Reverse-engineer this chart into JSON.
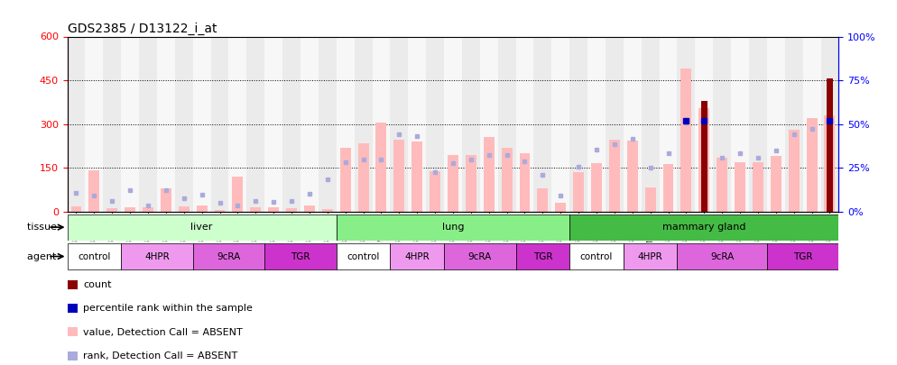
{
  "title": "GDS2385 / D13122_i_at",
  "samples": [
    "GSM89873",
    "GSM89875",
    "GSM89878",
    "GSM89881",
    "GSM89841",
    "GSM89843",
    "GSM89846",
    "GSM89870",
    "GSM89858",
    "GSM89861",
    "GSM89864",
    "GSM89867",
    "GSM89849",
    "GSM89852",
    "GSM89855",
    "GSM89876",
    "GSM89879",
    "GSM90168",
    "GSM89842",
    "GSM89844",
    "GSM89847",
    "GSM89871",
    "GSM89859",
    "GSM89862",
    "GSM89865",
    "GSM89868",
    "GSM89850",
    "GSM89853",
    "GSM89856",
    "GSM89874",
    "GSM89877",
    "GSM89880",
    "GSM90169",
    "GSM89845",
    "GSM89848",
    "GSM89872",
    "GSM89860",
    "GSM89863",
    "GSM89866",
    "GSM89869",
    "GSM89851",
    "GSM89854",
    "GSM89857"
  ],
  "value_absent": [
    18,
    142,
    12,
    15,
    15,
    80,
    18,
    22,
    5,
    120,
    14,
    14,
    12,
    22,
    8,
    220,
    235,
    305,
    248,
    240,
    140,
    195,
    195,
    255,
    220,
    200,
    80,
    30,
    135,
    165,
    248,
    245,
    82,
    162,
    490,
    355,
    185,
    170,
    168,
    192,
    280,
    320,
    330
  ],
  "rank_absent": [
    65,
    55,
    38,
    75,
    20,
    75,
    45,
    58,
    32,
    20,
    38,
    35,
    38,
    62,
    110,
    170,
    178,
    178,
    265,
    260,
    135,
    165,
    180,
    195,
    195,
    172,
    125,
    55,
    155,
    212,
    230,
    250,
    150,
    200,
    305,
    305,
    185,
    200,
    185,
    210,
    265,
    285,
    300
  ],
  "count": [
    0,
    0,
    0,
    0,
    0,
    0,
    0,
    0,
    0,
    0,
    0,
    0,
    0,
    0,
    0,
    0,
    0,
    0,
    0,
    0,
    0,
    0,
    0,
    0,
    0,
    0,
    0,
    0,
    0,
    0,
    0,
    0,
    0,
    0,
    0,
    380,
    0,
    0,
    0,
    0,
    0,
    0,
    455
  ],
  "percentile": [
    0,
    0,
    0,
    0,
    0,
    0,
    0,
    0,
    0,
    0,
    0,
    0,
    0,
    0,
    0,
    0,
    0,
    0,
    0,
    0,
    0,
    0,
    0,
    0,
    0,
    0,
    0,
    0,
    0,
    0,
    0,
    0,
    0,
    0,
    310,
    310,
    0,
    0,
    0,
    0,
    0,
    0,
    310
  ],
  "tissue_spans": [
    {
      "label": "liver",
      "start": 0,
      "end": 15,
      "color": "#ccffcc"
    },
    {
      "label": "lung",
      "start": 15,
      "end": 28,
      "color": "#88ee88"
    },
    {
      "label": "mammary gland",
      "start": 28,
      "end": 43,
      "color": "#44bb44"
    }
  ],
  "agent_spans": [
    {
      "label": "control",
      "start": 0,
      "end": 3,
      "color": "#ffffff"
    },
    {
      "label": "4HPR",
      "start": 3,
      "end": 7,
      "color": "#ee99ee"
    },
    {
      "label": "9cRA",
      "start": 7,
      "end": 11,
      "color": "#dd66dd"
    },
    {
      "label": "TGR",
      "start": 11,
      "end": 15,
      "color": "#cc33cc"
    },
    {
      "label": "control",
      "start": 15,
      "end": 18,
      "color": "#ffffff"
    },
    {
      "label": "4HPR",
      "start": 18,
      "end": 21,
      "color": "#ee99ee"
    },
    {
      "label": "9cRA",
      "start": 21,
      "end": 25,
      "color": "#dd66dd"
    },
    {
      "label": "TGR",
      "start": 25,
      "end": 28,
      "color": "#cc33cc"
    },
    {
      "label": "control",
      "start": 28,
      "end": 31,
      "color": "#ffffff"
    },
    {
      "label": "4HPR",
      "start": 31,
      "end": 34,
      "color": "#ee99ee"
    },
    {
      "label": "9cRA",
      "start": 34,
      "end": 39,
      "color": "#dd66dd"
    },
    {
      "label": "TGR",
      "start": 39,
      "end": 43,
      "color": "#cc33cc"
    }
  ],
  "ylim_left": [
    0,
    600
  ],
  "ylim_right": [
    0,
    100
  ],
  "yticks_left": [
    0,
    150,
    300,
    450,
    600
  ],
  "yticks_right": [
    0,
    25,
    50,
    75,
    100
  ],
  "color_value_absent": "#ffbbbb",
  "color_rank_absent": "#aaaadd",
  "color_count": "#8b0000",
  "color_percentile": "#0000bb",
  "bar_width": 0.6,
  "title_fontsize": 10,
  "tick_fontsize": 6.0,
  "legend_items": [
    {
      "color": "#8b0000",
      "marker": "s",
      "label": "count"
    },
    {
      "color": "#0000bb",
      "marker": "s",
      "label": "percentile rank within the sample"
    },
    {
      "color": "#ffbbbb",
      "marker": "s",
      "label": "value, Detection Call = ABSENT"
    },
    {
      "color": "#aaaadd",
      "marker": "s",
      "label": "rank, Detection Call = ABSENT"
    }
  ]
}
